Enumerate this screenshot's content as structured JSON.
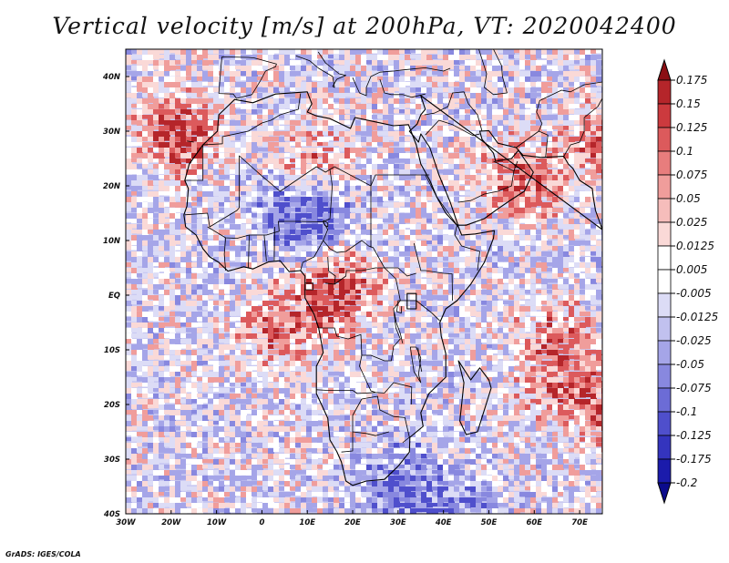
{
  "title": "Vertical velocity [m/s] at 200hPa, VT: 2020042400",
  "credit": "GrADS: IGES/COLA",
  "map": {
    "lon_range": [
      -30,
      75
    ],
    "lat_range": [
      -40,
      45
    ],
    "lat_ticks": [
      "40N",
      "30N",
      "20N",
      "10N",
      "EQ",
      "10S",
      "20S",
      "30S",
      "40S"
    ],
    "lon_ticks": [
      "30W",
      "20W",
      "10W",
      "0",
      "10E",
      "20E",
      "30E",
      "40E",
      "50E",
      "60E",
      "70E"
    ]
  },
  "colorbar": {
    "labels": [
      "0.175",
      "0.15",
      "0.125",
      "0.1",
      "0.075",
      "0.05",
      "0.025",
      "0.0125",
      "0.005",
      "-0.005",
      "-0.0125",
      "-0.025",
      "-0.05",
      "-0.075",
      "-0.1",
      "-0.125",
      "-0.175",
      "-0.2"
    ],
    "colors": [
      "#8b0f14",
      "#b5252a",
      "#cc3a3e",
      "#dc5a5c",
      "#e87d7d",
      "#f09d9b",
      "#f6bdbb",
      "#fad9d7",
      "#ffffff",
      "#ffffff",
      "#dcdcf6",
      "#c1c1ef",
      "#a5a5e8",
      "#8888df",
      "#6c6cd6",
      "#4f4fcc",
      "#3434be",
      "#1b1bab",
      "#0b0b8c"
    ]
  }
}
